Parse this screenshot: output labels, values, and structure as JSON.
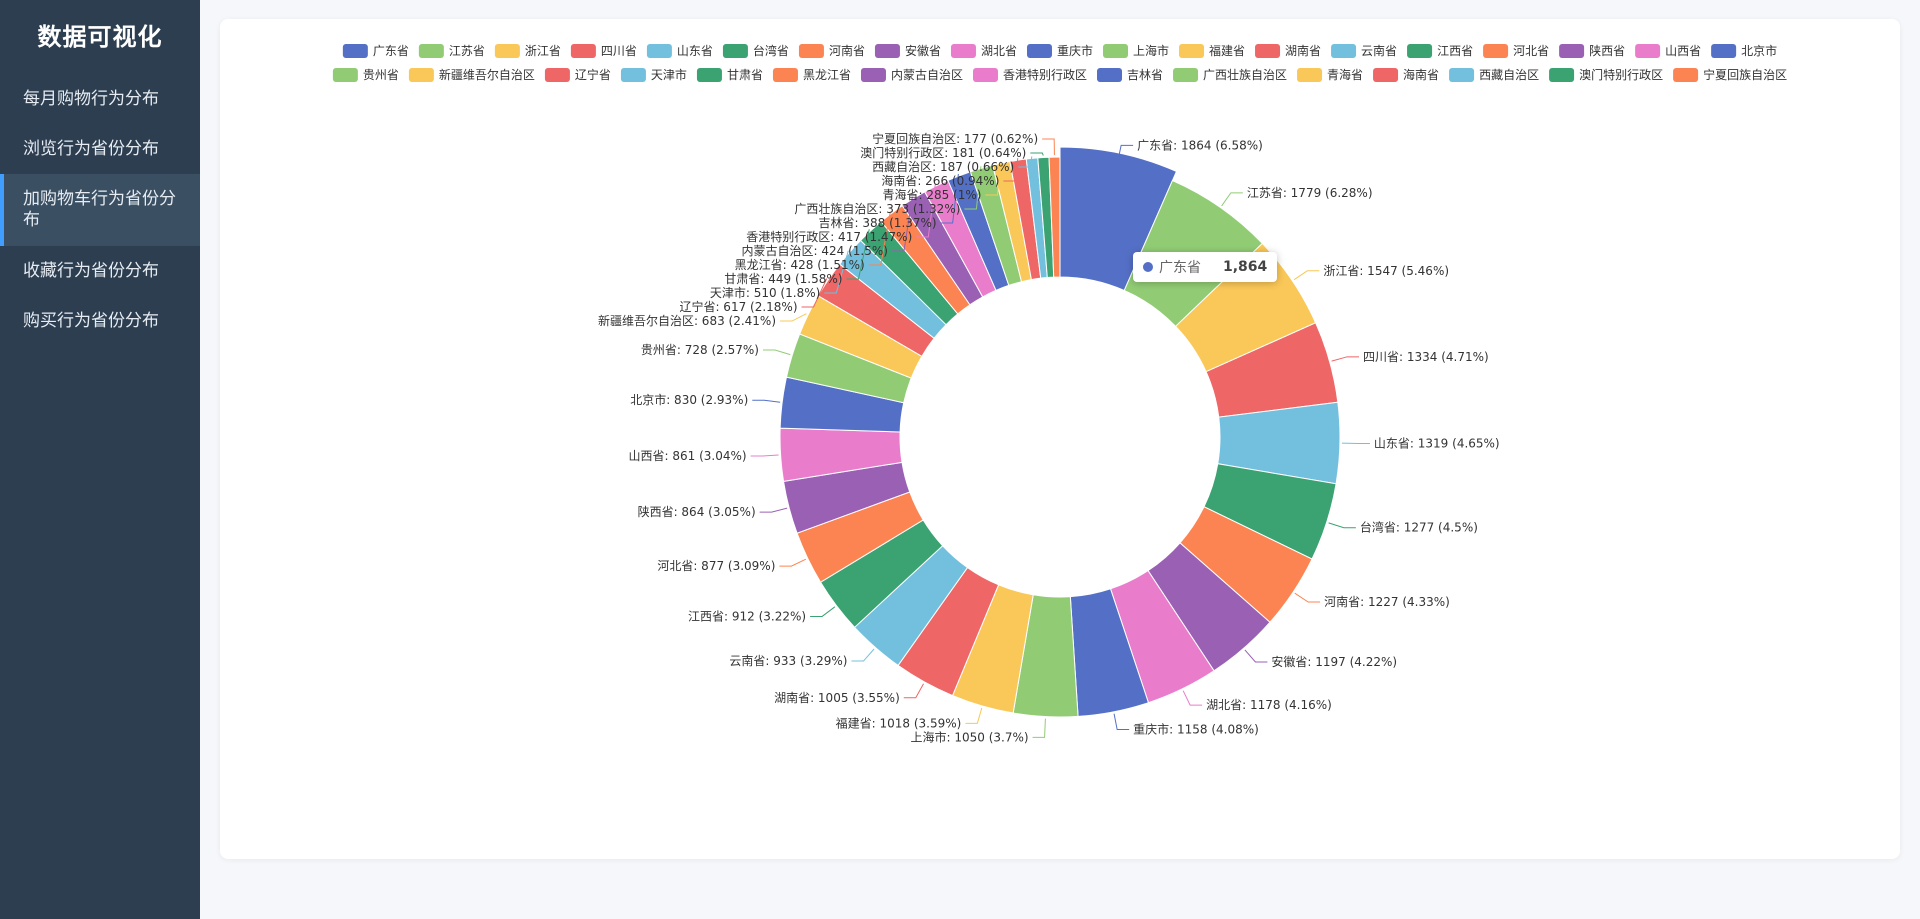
{
  "sidebar": {
    "title": "数据可视化",
    "items": [
      {
        "label": "每月购物行为分布"
      },
      {
        "label": "浏览行为省份分布"
      },
      {
        "label": "加购物车行为省份分布"
      },
      {
        "label": "收藏行为省份分布"
      },
      {
        "label": "购买行为省份分布"
      }
    ],
    "active_index": 2
  },
  "tooltip": {
    "name": "广东省",
    "value": "1,864"
  },
  "palette": [
    "#5470c6",
    "#91cc75",
    "#fac858",
    "#ee6666",
    "#73c0de",
    "#3ba272",
    "#fc8452",
    "#9a60b4",
    "#ea7ccc"
  ],
  "chart_data": {
    "type": "pie",
    "donut": true,
    "legend_position": "top",
    "label_format": "{name}: {value} ({percent}%)",
    "slices": [
      {
        "name": "广东省",
        "value": 1864,
        "percent": "6.58"
      },
      {
        "name": "江苏省",
        "value": 1779,
        "percent": "6.28"
      },
      {
        "name": "浙江省",
        "value": 1547,
        "percent": "5.46"
      },
      {
        "name": "四川省",
        "value": 1334,
        "percent": "4.71"
      },
      {
        "name": "山东省",
        "value": 1319,
        "percent": "4.65"
      },
      {
        "name": "台湾省",
        "value": 1277,
        "percent": "4.5"
      },
      {
        "name": "河南省",
        "value": 1227,
        "percent": "4.33"
      },
      {
        "name": "安徽省",
        "value": 1197,
        "percent": "4.22"
      },
      {
        "name": "湖北省",
        "value": 1178,
        "percent": "4.16"
      },
      {
        "name": "重庆市",
        "value": 1158,
        "percent": "4.08"
      },
      {
        "name": "上海市",
        "value": 1050,
        "percent": "3.7"
      },
      {
        "name": "福建省",
        "value": 1018,
        "percent": "3.59"
      },
      {
        "name": "湖南省",
        "value": 1005,
        "percent": "3.55"
      },
      {
        "name": "云南省",
        "value": 933,
        "percent": "3.29"
      },
      {
        "name": "江西省",
        "value": 912,
        "percent": "3.22"
      },
      {
        "name": "河北省",
        "value": 877,
        "percent": "3.09"
      },
      {
        "name": "陕西省",
        "value": 864,
        "percent": "3.05"
      },
      {
        "name": "山西省",
        "value": 861,
        "percent": "3.04"
      },
      {
        "name": "北京市",
        "value": 830,
        "percent": "2.93"
      },
      {
        "name": "贵州省",
        "value": 728,
        "percent": "2.57"
      },
      {
        "name": "新疆维吾尔自治区",
        "value": 683,
        "percent": "2.41"
      },
      {
        "name": "辽宁省",
        "value": 617,
        "percent": "2.18"
      },
      {
        "name": "天津市",
        "value": 510,
        "percent": "1.8"
      },
      {
        "name": "甘肃省",
        "value": 449,
        "percent": "1.58"
      },
      {
        "name": "黑龙江省",
        "value": 428,
        "percent": "1.51"
      },
      {
        "name": "内蒙古自治区",
        "value": 424,
        "percent": "1.5"
      },
      {
        "name": "香港特别行政区",
        "value": 417,
        "percent": "1.47"
      },
      {
        "name": "吉林省",
        "value": 388,
        "percent": "1.37"
      },
      {
        "name": "广西壮族自治区",
        "value": 373,
        "percent": "1.32"
      },
      {
        "name": "青海省",
        "value": 285,
        "percent": "1"
      },
      {
        "name": "海南省",
        "value": 266,
        "percent": "0.94"
      },
      {
        "name": "西藏自治区",
        "value": 187,
        "percent": "0.66"
      },
      {
        "name": "澳门特别行政区",
        "value": 181,
        "percent": "0.64"
      },
      {
        "name": "宁夏回族自治区",
        "value": 177,
        "percent": "0.62"
      }
    ]
  }
}
